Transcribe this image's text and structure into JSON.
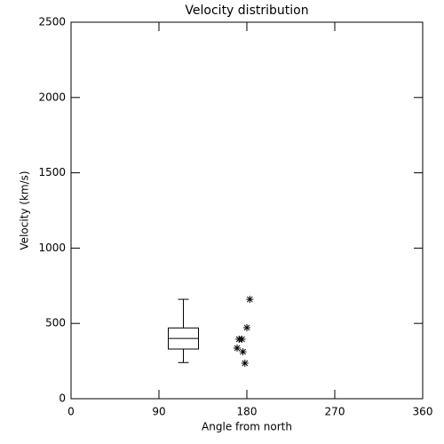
{
  "chart_data": {
    "type": "box",
    "title": "Velocity distribution",
    "xlabel": "Angle from north",
    "ylabel": "Velocity (km/s)",
    "xlim": [
      0,
      360
    ],
    "ylim": [
      0,
      2500
    ],
    "xticks": [
      0,
      90,
      180,
      270,
      360
    ],
    "yticks": [
      0,
      500,
      1000,
      1500,
      2000,
      2500
    ],
    "color": "#000000",
    "boxes": [
      {
        "x": 115,
        "whislo": 240,
        "q1": 330,
        "median": 400,
        "q3": 470,
        "whishi": 660
      }
    ],
    "points": {
      "x": [
        183,
        180,
        172,
        175,
        170,
        176,
        178
      ],
      "y": [
        660,
        472,
        395,
        395,
        336,
        312,
        236
      ]
    }
  }
}
